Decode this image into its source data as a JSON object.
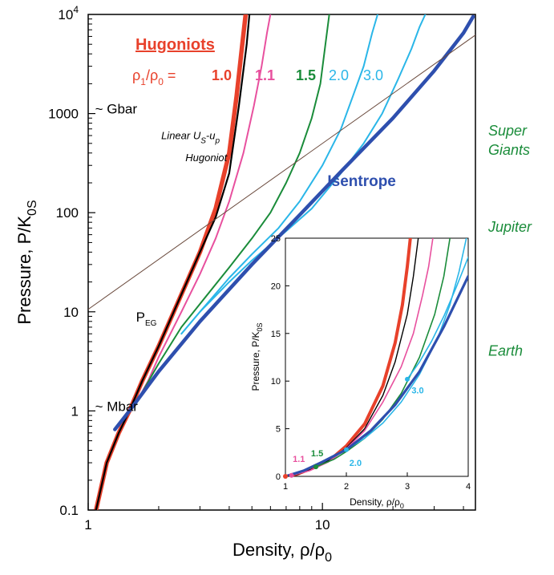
{
  "chart_data": [
    {
      "type": "line",
      "title": "",
      "xlabel": "Density, ρ/ρ",
      "xlabel_sub": "0",
      "ylabel": "Pressure, P/K",
      "ylabel_sub": "0S",
      "x_scale": "log",
      "y_scale": "log",
      "xlim": [
        1,
        45
      ],
      "ylim": [
        0.1,
        10000
      ],
      "x_ticks": [
        {
          "value": 1,
          "label": "1"
        },
        {
          "value": 10,
          "label": "10"
        }
      ],
      "y_ticks": [
        {
          "value": 0.1,
          "label": "0.1"
        },
        {
          "value": 1,
          "label": "1"
        },
        {
          "value": 10,
          "label": "10"
        },
        {
          "value": 100,
          "label": "100"
        },
        {
          "value": 1000,
          "label": "1000"
        }
      ],
      "y_top_label": {
        "base": "10",
        "exp": "4"
      },
      "grid": false,
      "legend_title": "Hugoniots",
      "legend_ratio": {
        "main": "ρ",
        "sub1": "1",
        "slash": "/ρ",
        "sub2": "0",
        "eq": " ="
      },
      "series": [
        {
          "name": "1.0",
          "color": "#e8412b",
          "x": [
            1.08,
            1.2,
            1.35,
            1.5,
            1.7,
            2.0,
            2.5,
            3.0,
            3.5,
            4.0,
            4.3,
            4.55,
            4.7
          ],
          "y": [
            0.1,
            0.3,
            0.6,
            1.0,
            2.0,
            4.5,
            15,
            40,
            110,
            400,
            1500,
            5000,
            10000
          ]
        },
        {
          "name": "Linear Us-up Hugoniot",
          "color": "#000000",
          "x": [
            1.08,
            1.2,
            1.35,
            1.5,
            1.7,
            2.0,
            2.5,
            3.0,
            3.5,
            4.0,
            4.4,
            4.75,
            4.88
          ],
          "y": [
            0.1,
            0.3,
            0.6,
            1.0,
            2.0,
            4.5,
            15,
            40,
            90,
            250,
            1200,
            5000,
            10000
          ]
        },
        {
          "name": "1.1",
          "color": "#e8509e",
          "x": [
            1.6,
            1.8,
            2.0,
            2.5,
            3.0,
            3.5,
            4.0,
            4.6,
            5.1,
            5.5,
            5.8,
            6.0
          ],
          "y": [
            1.2,
            2.0,
            3.5,
            10,
            24,
            55,
            130,
            400,
            1200,
            3000,
            6500,
            10000
          ]
        },
        {
          "name": "1.5",
          "color": "#1a8c3a",
          "x": [
            1.6,
            2.0,
            2.5,
            3.0,
            4.0,
            5.0,
            6.0,
            7.0,
            8.0,
            9.0,
            9.8,
            10.3,
            10.7
          ],
          "y": [
            1.2,
            3.0,
            7.0,
            12,
            28,
            55,
            100,
            200,
            400,
            900,
            2000,
            5000,
            10000
          ]
        },
        {
          "name": "2.0",
          "color": "#2ab6e8",
          "x": [
            2.5,
            3.0,
            4.0,
            5.0,
            6.5,
            8.0,
            10.0,
            12.0,
            13.5,
            15.0,
            16.3,
            17.2
          ],
          "y": [
            6.0,
            10,
            22,
            38,
            70,
            130,
            300,
            700,
            1500,
            3000,
            6500,
            10000
          ]
        },
        {
          "name": "3.0",
          "color": "#2ab6e8",
          "x": [
            3.0,
            4.0,
            5.0,
            7.0,
            9.0,
            12.0,
            15.0,
            18.0,
            21.0,
            24.0,
            26.0,
            27.5
          ],
          "y": [
            10,
            20,
            33,
            65,
            110,
            250,
            500,
            1000,
            2200,
            4500,
            7500,
            10000
          ]
        },
        {
          "name": "Isentrope",
          "color": "#2e4fae",
          "x": [
            1.3,
            1.5,
            2.0,
            3.0,
            5.0,
            8.0,
            12.0,
            20.0,
            30.0,
            40.0,
            44.0
          ],
          "y": [
            0.65,
            1.0,
            2.5,
            8.0,
            30,
            95,
            260,
            900,
            2700,
            6500,
            9500
          ]
        },
        {
          "name": "P_EG",
          "color": "#6b4b3e",
          "x": [
            1.0,
            45.0
          ],
          "y": [
            10.6,
            6200
          ]
        }
      ],
      "annotations": [
        {
          "text": "~ Gbar",
          "x": 1.07,
          "y": 1000
        },
        {
          "text": "~ Mbar",
          "x": 1.07,
          "y": 1.0
        },
        {
          "text": "P",
          "sub": "EG",
          "x": 1.6,
          "y": 8.0
        },
        {
          "text": "Linear U",
          "sub": "S",
          "text2": "-u",
          "sub2": "p",
          "x": 2.05,
          "y": 550
        },
        {
          "text": "Hugoniot",
          "x": 2.6,
          "y": 330
        },
        {
          "text": "Isentrope",
          "x": 10.5,
          "y": 185
        }
      ],
      "side_labels": [
        {
          "lines": [
            "Super",
            "Giants"
          ],
          "y": 600
        },
        {
          "lines": [
            "Jupiter"
          ],
          "y": 64
        },
        {
          "lines": [
            "Earth"
          ],
          "y": 3.6
        }
      ],
      "side_label_color": "#1a8c3a"
    },
    {
      "type": "line",
      "title": "",
      "xlabel": "Density, ρ/ρ",
      "xlabel_sub": "0",
      "ylabel": "Pressure, P/K",
      "ylabel_sub": "0S",
      "x_scale": "linear",
      "y_scale": "linear",
      "xlim": [
        1,
        4
      ],
      "ylim": [
        0,
        25
      ],
      "x_ticks": [
        1,
        2,
        3,
        4
      ],
      "y_ticks": [
        0,
        5,
        10,
        15,
        20,
        25
      ],
      "grid": false,
      "series": [
        {
          "name": "1.0",
          "color": "#e8412b",
          "x": [
            1.0,
            1.2,
            1.5,
            1.8,
            2.0,
            2.3,
            2.6,
            2.8,
            2.92,
            3.0,
            3.05
          ],
          "y": [
            0,
            0.25,
            1.0,
            2.1,
            3.2,
            5.5,
            9.5,
            14,
            18,
            22,
            25
          ]
        },
        {
          "name": "Linear Us-up Hugoniot",
          "color": "#000000",
          "x": [
            1.0,
            1.2,
            1.5,
            1.8,
            2.0,
            2.3,
            2.6,
            2.8,
            3.0,
            3.1,
            3.18
          ],
          "y": [
            0,
            0.2,
            0.9,
            2.0,
            3.0,
            5.0,
            8.5,
            12,
            17,
            21,
            25
          ]
        },
        {
          "name": "1.1",
          "color": "#e8509e",
          "x": [
            1.1,
            1.4,
            1.7,
            2.0,
            2.3,
            2.6,
            2.9,
            3.1,
            3.25,
            3.35,
            3.42
          ],
          "y": [
            0.1,
            0.6,
            1.5,
            2.9,
            4.8,
            7.8,
            11.5,
            15,
            19,
            22,
            25
          ]
        },
        {
          "name": "1.5",
          "color": "#1a8c3a",
          "x": [
            1.5,
            1.8,
            2.0,
            2.3,
            2.6,
            2.9,
            3.2,
            3.45,
            3.6,
            3.7
          ],
          "y": [
            1.0,
            1.8,
            2.6,
            4.0,
            6.0,
            8.7,
            12.5,
            17,
            21,
            25
          ]
        },
        {
          "name": "2.0",
          "color": "#2ab6e8",
          "x": [
            2.0,
            2.3,
            2.6,
            2.9,
            3.2,
            3.5,
            3.7,
            3.85,
            3.97
          ],
          "y": [
            2.8,
            4.0,
            5.6,
            7.8,
            10.7,
            14.5,
            18,
            21.5,
            25
          ]
        },
        {
          "name": "3.0",
          "color": "#2ab6e8",
          "x": [
            3.0,
            3.2,
            3.4,
            3.6,
            3.8,
            4.0
          ],
          "y": [
            10.2,
            12.0,
            14.2,
            16.8,
            19.8,
            23
          ]
        },
        {
          "name": "Isentrope",
          "color": "#2e4fae",
          "x": [
            1.0,
            1.3,
            1.6,
            2.0,
            2.4,
            2.8,
            3.2,
            3.6,
            4.0
          ],
          "y": [
            0,
            0.6,
            1.5,
            2.8,
            4.8,
            7.5,
            11,
            15.7,
            21
          ]
        }
      ],
      "start_markers": [
        {
          "x": 1.0,
          "y": 0.0,
          "color": "#e8412b"
        },
        {
          "x": 1.1,
          "y": 0.1,
          "color": "#e8509e"
        },
        {
          "x": 1.5,
          "y": 1.0,
          "color": "#1a8c3a"
        },
        {
          "x": 2.0,
          "y": 2.8,
          "color": "#2ab6e8"
        },
        {
          "x": 3.0,
          "y": 10.2,
          "color": "#2ab6e8"
        }
      ],
      "marker_labels": [
        {
          "text": "1.1",
          "x": 1.12,
          "y": 1.5,
          "color": "#e8509e"
        },
        {
          "text": "1.5",
          "x": 1.42,
          "y": 2.1,
          "color": "#1a8c3a"
        },
        {
          "text": "2.0",
          "x": 2.05,
          "y": 1.1,
          "color": "#2ab6e8"
        },
        {
          "text": "3.0",
          "x": 3.07,
          "y": 8.7,
          "color": "#2ab6e8"
        }
      ]
    }
  ]
}
